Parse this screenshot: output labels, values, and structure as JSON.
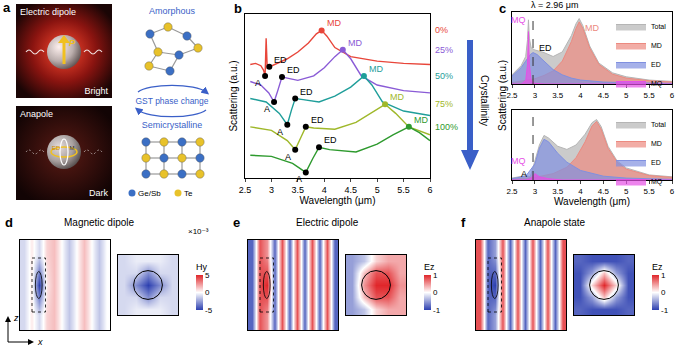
{
  "diagram": {
    "panel": "a",
    "electric_dipole": {
      "title": "Electric dipole",
      "moment": "P",
      "state": "Bright"
    },
    "anapole": {
      "title": "Anapole",
      "moments": [
        "ED",
        "M"
      ],
      "state": "Dark"
    },
    "phase_change": {
      "label": "GST phase change",
      "top": "Amorphous",
      "bottom": "Semicrystalline",
      "legend": [
        {
          "name": "Ge/Sb",
          "color": "#3b6fc4"
        },
        {
          "name": "Te",
          "color": "#e8c22a"
        }
      ]
    }
  },
  "chart_data": [
    {
      "panel": "b",
      "type": "line",
      "x_label": "Wavelength (μm)",
      "y_label": "Scattering (a.u.)",
      "xlim": [
        2.5,
        6
      ],
      "xticks": [
        2.5,
        3,
        3.5,
        4,
        4.5,
        5,
        5.5,
        6
      ],
      "ylim": [
        0,
        8.5
      ],
      "tick_labels": "x",
      "side_label": "Crystallinity",
      "series": [
        {
          "name": "0%",
          "color": "#e8463a",
          "x": [
            2.6,
            2.7,
            2.8,
            2.85,
            2.88,
            2.9,
            2.92,
            2.96,
            3.1,
            3.3,
            3.5,
            3.7,
            3.85,
            3.95,
            4.05,
            4.2,
            4.5,
            5,
            5.5,
            6
          ],
          "values": [
            5.88,
            5.94,
            5.82,
            5.59,
            5.29,
            7.24,
            5.71,
            5.76,
            5.94,
            6.18,
            6.53,
            7.0,
            7.47,
            7.65,
            7.35,
            6.76,
            6.29,
            6.06,
            5.94,
            5.88
          ],
          "points": [
            {
              "label": "A",
              "x": 2.88,
              "y": 5.29
            },
            {
              "label": "ED",
              "x": 2.96,
              "y": 5.76
            },
            {
              "label": "MD",
              "x": 3.95,
              "y": 7.65
            }
          ]
        },
        {
          "name": "25%",
          "color": "#8a5bd6",
          "x": [
            2.6,
            2.8,
            2.95,
            3.05,
            3.12,
            3.2,
            3.3,
            3.5,
            3.8,
            4.0,
            4.2,
            4.35,
            4.5,
            4.7,
            5,
            5.5,
            6
          ],
          "values": [
            5.0,
            4.82,
            4.41,
            3.94,
            4.53,
            5.24,
            5.18,
            5.06,
            5.29,
            5.71,
            6.29,
            6.65,
            6.18,
            5.29,
            4.82,
            4.53,
            4.41
          ],
          "points": [
            {
              "label": "A",
              "x": 3.05,
              "y": 3.94
            },
            {
              "label": "ED",
              "x": 3.2,
              "y": 5.24
            },
            {
              "label": "MD",
              "x": 4.35,
              "y": 6.65
            }
          ]
        },
        {
          "name": "50%",
          "color": "#1f9e9a",
          "x": [
            2.6,
            2.9,
            3.15,
            3.3,
            3.38,
            3.45,
            3.6,
            3.9,
            4.2,
            4.5,
            4.75,
            4.9,
            5.1,
            5.5,
            6
          ],
          "values": [
            4.12,
            3.94,
            3.35,
            2.76,
            3.53,
            4.12,
            4.06,
            3.94,
            4.24,
            4.71,
            5.29,
            4.82,
            3.94,
            3.47,
            3.24
          ],
          "points": [
            {
              "label": "A",
              "x": 3.3,
              "y": 2.76
            },
            {
              "label": "ED",
              "x": 3.45,
              "y": 4.12
            },
            {
              "label": "MD",
              "x": 4.75,
              "y": 5.29
            }
          ]
        },
        {
          "name": "75%",
          "color": "#9fb82a",
          "x": [
            2.6,
            3.0,
            3.3,
            3.45,
            3.55,
            3.65,
            3.8,
            4.2,
            4.6,
            4.9,
            5.15,
            5.35,
            5.6,
            6
          ],
          "values": [
            2.65,
            2.47,
            1.94,
            1.47,
            2.06,
            2.65,
            2.59,
            2.53,
            2.88,
            3.41,
            3.82,
            3.35,
            2.65,
            2.24
          ],
          "points": [
            {
              "label": "A",
              "x": 3.45,
              "y": 1.47
            },
            {
              "label": "ED",
              "x": 3.65,
              "y": 2.65
            },
            {
              "label": "MD",
              "x": 5.15,
              "y": 3.82
            }
          ]
        },
        {
          "name": "100%",
          "color": "#2e9a2e",
          "x": [
            2.6,
            3.0,
            3.4,
            3.65,
            3.78,
            3.9,
            4.1,
            4.6,
            5.0,
            5.3,
            5.6,
            5.8,
            6
          ],
          "values": [
            1.18,
            1.12,
            0.76,
            0.29,
            1.0,
            1.59,
            1.47,
            1.35,
            1.76,
            2.24,
            2.65,
            2.35,
            1.94
          ],
          "points": [
            {
              "label": "A",
              "x": 3.65,
              "y": 0.29
            },
            {
              "label": "ED",
              "x": 3.9,
              "y": 1.59
            },
            {
              "label": "MD",
              "x": 5.6,
              "y": 2.65
            }
          ]
        }
      ]
    },
    {
      "panel": "c",
      "type": "area",
      "y_label": "Scattering (a.u.)",
      "xlim": [
        2.5,
        6
      ],
      "xticks": [
        2.5,
        3,
        3.5,
        4,
        4.5,
        5,
        5.5,
        6
      ],
      "ylim": [
        0,
        1.1
      ],
      "tick_labels": "x",
      "legend": "upper right",
      "vline": {
        "x": 2.96,
        "label": "λ = 2.96 μm"
      },
      "labels": [
        {
          "text": "MQ",
          "x": 2.84,
          "y": 0.98,
          "color": "#e650e6"
        },
        {
          "text": "ED",
          "x": 3.05,
          "y": 0.55,
          "color": "#000000"
        },
        {
          "text": "MD",
          "x": 4.05,
          "y": 0.85,
          "color": "#ec8a80"
        }
      ],
      "series": [
        {
          "name": "Total",
          "color": "#b5b5b5",
          "x": [
            2.5,
            2.7,
            2.8,
            2.84,
            2.86,
            2.88,
            2.92,
            3.0,
            3.2,
            3.4,
            3.6,
            3.8,
            3.9,
            3.97,
            4.05,
            4.2,
            4.4,
            4.7,
            5,
            5.5,
            6
          ],
          "values": [
            0.14,
            0.28,
            0.42,
            0.68,
            0.98,
            0.7,
            0.55,
            0.52,
            0.48,
            0.42,
            0.49,
            0.74,
            0.92,
            1.0,
            0.89,
            0.58,
            0.32,
            0.17,
            0.11,
            0.06,
            0.04
          ]
        },
        {
          "name": "MD",
          "color": "#ec8a80",
          "x": [
            2.5,
            2.8,
            3.0,
            3.2,
            3.4,
            3.6,
            3.8,
            3.9,
            3.97,
            4.05,
            4.2,
            4.4,
            4.7,
            5,
            5.5,
            6
          ],
          "values": [
            0.02,
            0.05,
            0.08,
            0.13,
            0.2,
            0.35,
            0.65,
            0.85,
            0.95,
            0.85,
            0.55,
            0.3,
            0.15,
            0.09,
            0.05,
            0.03
          ]
        },
        {
          "name": "ED",
          "color": "#8090e0",
          "x": [
            2.5,
            2.7,
            2.8,
            2.9,
            2.96,
            3.05,
            3.2,
            3.4,
            3.6,
            3.8,
            4.0,
            4.5,
            5,
            6
          ],
          "values": [
            0.12,
            0.25,
            0.35,
            0.45,
            0.48,
            0.45,
            0.35,
            0.22,
            0.14,
            0.09,
            0.06,
            0.03,
            0.02,
            0.01
          ]
        },
        {
          "name": "MQ",
          "color": "#e650e6",
          "x": [
            2.5,
            2.7,
            2.8,
            2.84,
            2.86,
            2.88,
            2.92,
            3.0,
            3.2,
            6
          ],
          "values": [
            0,
            0,
            0.05,
            0.3,
            0.8,
            0.3,
            0.05,
            0.01,
            0,
            0
          ]
        }
      ]
    },
    {
      "type": "area",
      "x_label": "Wavelength (μm)",
      "xlim": [
        2.5,
        6
      ],
      "xticks": [
        2.5,
        3,
        3.5,
        4,
        4.5,
        5,
        5.5,
        6
      ],
      "ylim": [
        0,
        1.1
      ],
      "tick_labels": "x",
      "legend": "upper right",
      "vline": {
        "x": 2.96
      },
      "labels": [
        {
          "text": "MQ",
          "x": 2.85,
          "y": 0.3,
          "color": "#e650e6"
        },
        {
          "text": "A",
          "x": 2.88,
          "y": 0.1,
          "color": "#000000"
        }
      ],
      "series": [
        {
          "name": "Total",
          "color": "#b5b5b5",
          "x": [
            2.5,
            2.8,
            2.9,
            3.0,
            3.1,
            3.2,
            3.3,
            3.5,
            3.7,
            3.9,
            4.1,
            4.25,
            4.35,
            4.45,
            4.6,
            4.8,
            5,
            5.5,
            6
          ],
          "values": [
            0.03,
            0.07,
            0.05,
            0.3,
            0.55,
            0.7,
            0.66,
            0.53,
            0.48,
            0.55,
            0.72,
            0.9,
            0.95,
            0.84,
            0.53,
            0.3,
            0.19,
            0.08,
            0.05
          ]
        },
        {
          "name": "MD",
          "color": "#ec8a80",
          "x": [
            2.5,
            3.0,
            3.4,
            3.7,
            3.9,
            4.1,
            4.25,
            4.35,
            4.45,
            4.6,
            4.8,
            5,
            5.5,
            6
          ],
          "values": [
            0.01,
            0.04,
            0.1,
            0.2,
            0.35,
            0.6,
            0.85,
            0.92,
            0.8,
            0.5,
            0.28,
            0.17,
            0.07,
            0.04
          ]
        },
        {
          "name": "ED",
          "color": "#8090e0",
          "x": [
            2.5,
            2.8,
            3.0,
            3.1,
            3.2,
            3.3,
            3.5,
            3.7,
            4.0,
            4.5,
            5,
            6
          ],
          "values": [
            0.02,
            0.06,
            0.25,
            0.5,
            0.64,
            0.6,
            0.42,
            0.28,
            0.15,
            0.06,
            0.03,
            0.01
          ]
        },
        {
          "name": "MQ",
          "color": "#e650e6",
          "x": [
            2.5,
            2.8,
            2.9,
            3.0,
            3.1,
            3.3,
            3.6,
            6
          ],
          "values": [
            0,
            0,
            0.02,
            0.1,
            0.05,
            0.02,
            0,
            0
          ]
        }
      ]
    },
    {
      "panel": "d",
      "type": "heatmap",
      "title": "Magnetic dipole",
      "x_label": "x",
      "y_label": "z",
      "tick_labels": false,
      "cells": [
        [
          -1,
          0.5,
          -1,
          1,
          1.5,
          0,
          -1.5,
          0,
          1.5,
          0,
          -1.5,
          0
        ],
        [
          -1,
          0.5,
          -5,
          0.5,
          1.5,
          0,
          -1.5,
          0,
          1.5,
          0,
          -1.5,
          0
        ],
        [
          -1,
          0.5,
          -1,
          1,
          1.5,
          0,
          -1.5,
          0,
          1.5,
          0,
          -1.5,
          0
        ]
      ],
      "inset_cells": [
        [
          -1,
          -0.5,
          -0.5,
          -0.5,
          -1
        ],
        [
          -1,
          -1,
          -3,
          -1,
          -1
        ],
        [
          -1,
          -3,
          -5,
          -3,
          -1
        ],
        [
          -1,
          -1,
          -3,
          -1,
          -1
        ],
        [
          -1,
          -0.5,
          -0.5,
          -0.5,
          -1
        ]
      ],
      "colorbar": {
        "title": "Hy",
        "label": "×10⁻³",
        "range": [
          -5,
          5
        ],
        "ticks": [
          -5,
          0,
          5
        ]
      }
    },
    {
      "panel": "e",
      "type": "heatmap",
      "title": "Electric dipole",
      "tick_labels": false,
      "cells": [
        [
          -0.8,
          0.8,
          0.5,
          -0.8,
          0.8,
          -0.8,
          0.8,
          -0.8,
          0.8,
          -0.8,
          0.8,
          -0.8
        ],
        [
          -0.8,
          0.8,
          1,
          -0.8,
          0.8,
          -0.8,
          0.8,
          -0.8,
          0.8,
          -0.8,
          0.8,
          -0.8
        ],
        [
          -0.8,
          0.8,
          0.5,
          -0.8,
          0.8,
          -0.8,
          0.8,
          -0.8,
          0.8,
          -0.8,
          0.8,
          -0.8
        ]
      ],
      "inset_cells": [
        [
          -0.5,
          -0.3,
          0.2,
          0.4,
          0.4
        ],
        [
          -0.5,
          0.3,
          0.8,
          0.8,
          0.4
        ],
        [
          -0.5,
          0.5,
          1,
          1,
          0.5
        ],
        [
          -0.5,
          0.3,
          0.8,
          0.8,
          0.4
        ],
        [
          -0.5,
          -0.3,
          0.2,
          0.4,
          0.4
        ]
      ],
      "colorbar": {
        "title": "Ez",
        "range": [
          -1,
          1
        ],
        "ticks": [
          -1,
          0,
          1
        ]
      }
    },
    {
      "panel": "f",
      "type": "heatmap",
      "title": "Anapole state",
      "tick_labels": false,
      "cells": [
        [
          0.8,
          -0.8,
          -0.5,
          0.8,
          -0.8,
          0.8,
          -0.8,
          0.8,
          -0.8,
          0.8,
          -0.8,
          0.8
        ],
        [
          0.8,
          -0.8,
          -1,
          0.8,
          -0.8,
          0.8,
          -0.8,
          0.8,
          -0.8,
          0.8,
          -0.8,
          0.8
        ],
        [
          0.8,
          -0.8,
          -0.5,
          0.8,
          -0.8,
          0.8,
          -0.8,
          0.8,
          -0.8,
          0.8,
          -0.8,
          0.8
        ]
      ],
      "inset_cells": [
        [
          -0.8,
          -0.9,
          -0.9,
          -0.9,
          -0.8
        ],
        [
          -0.9,
          -0.5,
          0.3,
          -0.5,
          -0.9
        ],
        [
          -0.9,
          0.2,
          1,
          0.2,
          -0.9
        ],
        [
          -0.9,
          -0.5,
          0.3,
          -0.5,
          -0.9
        ],
        [
          -0.8,
          -0.9,
          -0.9,
          -0.9,
          -0.8
        ]
      ],
      "colorbar": {
        "title": "Ez",
        "range": [
          -1,
          1
        ],
        "ticks": [
          -1,
          0,
          1
        ]
      }
    }
  ]
}
